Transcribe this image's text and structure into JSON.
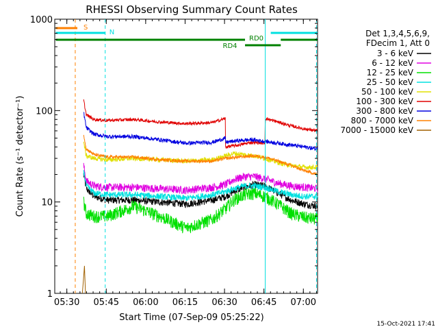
{
  "chart_data": {
    "type": "line",
    "title": "RHESSI Observing Summary Count Rates",
    "xlabel": "Start Time (07-Sep-09 05:25:22)",
    "ylabel": "Count Rate (s⁻¹ detector⁻¹)",
    "y_scale": "log",
    "ylim": [
      1,
      1000
    ],
    "xlim_minutes": [
      0,
      100
    ],
    "x_ticks": [
      {
        "label": "05:30",
        "minute": 4.6
      },
      {
        "label": "05:45",
        "minute": 19.6
      },
      {
        "label": "06:00",
        "minute": 34.6
      },
      {
        "label": "06:15",
        "minute": 49.6
      },
      {
        "label": "06:30",
        "minute": 64.6
      },
      {
        "label": "06:45",
        "minute": 79.6
      },
      {
        "label": "07:00",
        "minute": 94.6
      }
    ],
    "y_ticks": [
      {
        "label": "1",
        "value": 1
      },
      {
        "label": "10",
        "value": 10
      },
      {
        "label": "100",
        "value": 100
      },
      {
        "label": "1000",
        "value": 1000
      }
    ],
    "legend": {
      "placement": "right",
      "header": [
        "Det 1,3,4,5,6,9,",
        "FDecim 1, Att 0"
      ]
    },
    "series": [
      {
        "name": "3 - 6 keV",
        "color": "#000000",
        "x": [
          11,
          12,
          15,
          20,
          30,
          40,
          50,
          60,
          65,
          68,
          72,
          76,
          80,
          85,
          90,
          95,
          100
        ],
        "y": [
          20,
          14,
          11.5,
          10.5,
          10.5,
          10,
          9.5,
          10.5,
          11.5,
          13,
          14.5,
          15.5,
          15,
          12.5,
          10.5,
          9.5,
          9
        ]
      },
      {
        "name": "6 - 12 keV",
        "color": "#e000e0",
        "x": [
          11,
          12,
          15,
          20,
          30,
          40,
          50,
          60,
          65,
          68,
          72,
          76,
          80,
          85,
          90,
          95,
          100
        ],
        "y": [
          25,
          17,
          15,
          14.5,
          14.5,
          14,
          13.5,
          14.5,
          15.5,
          17.5,
          19,
          19,
          18,
          16,
          15,
          14.5,
          14
        ]
      },
      {
        "name": "12 - 25 keV",
        "color": "#00e000",
        "x": [
          11,
          12,
          15,
          20,
          30,
          40,
          50,
          60,
          65,
          68,
          72,
          76,
          80,
          85,
          90,
          95,
          100
        ],
        "y": [
          10,
          7.5,
          7,
          7,
          9,
          7,
          5.2,
          6.5,
          8.5,
          10.5,
          12,
          12.5,
          11.5,
          9.5,
          7.5,
          6.8,
          6.5
        ]
      },
      {
        "name": "25 - 50 keV",
        "color": "#00e0e0",
        "x": [
          11,
          12,
          15,
          20,
          30,
          40,
          50,
          60,
          65,
          68,
          72,
          76,
          80,
          85,
          90,
          95,
          100
        ],
        "y": [
          22,
          15,
          12.5,
          12,
          12,
          11.5,
          11,
          12,
          13,
          14,
          15,
          15,
          14.5,
          13,
          12,
          11.5,
          11.5
        ]
      },
      {
        "name": "50 - 100 keV",
        "color": "#e0e000",
        "x": [
          11,
          12,
          15,
          20,
          30,
          40,
          50,
          60,
          65,
          68,
          72,
          76,
          80,
          85,
          90,
          95,
          100
        ],
        "y": [
          45,
          32,
          30,
          29,
          30,
          29,
          28,
          29,
          32,
          34,
          33,
          32,
          30,
          27,
          25,
          24,
          24
        ]
      },
      {
        "name": "100 - 300 keV",
        "color": "#e00000",
        "x": [
          11,
          12,
          15,
          20,
          30,
          40,
          50,
          60,
          64.9,
          65,
          70,
          75,
          80,
          80.1,
          85,
          90,
          95,
          100
        ],
        "y": [
          130,
          90,
          80,
          78,
          80,
          75,
          72,
          74,
          82,
          40,
          42,
          45,
          44,
          82,
          75,
          68,
          63,
          60
        ]
      },
      {
        "name": "300 - 800 keV",
        "color": "#0000e0",
        "x": [
          11,
          12,
          15,
          20,
          30,
          40,
          50,
          60,
          64.9,
          65,
          70,
          75,
          80,
          85,
          90,
          95,
          100
        ],
        "y": [
          95,
          65,
          55,
          52,
          52,
          48,
          44,
          45,
          50,
          45,
          47,
          48,
          46,
          44,
          42,
          40,
          38
        ]
      },
      {
        "name": "800 - 7000 keV",
        "color": "#ff8000",
        "x": [
          11,
          12,
          15,
          20,
          30,
          40,
          50,
          60,
          65,
          70,
          75,
          80,
          85,
          90,
          95,
          100
        ],
        "y": [
          55,
          38,
          33,
          31,
          31,
          29,
          28,
          28,
          30,
          31,
          32,
          31,
          28,
          25,
          22,
          20
        ]
      },
      {
        "name": "7000 - 15000 keV",
        "color": "#a06000",
        "x": [
          10.5,
          10.9,
          11.3,
          11.7
        ],
        "y": [
          1.0,
          1.4,
          2.0,
          1.0
        ]
      }
    ],
    "annotations": [
      {
        "label": "S",
        "color": "#ff8000",
        "x_start": 0.4,
        "x_end": 8.6,
        "level": "top"
      },
      {
        "label": "N",
        "color": "#00e0e0",
        "segments": [
          [
            0.4,
            19.2
          ],
          [
            82.2,
            100
          ]
        ],
        "level": "upper"
      },
      {
        "label": "RD0",
        "color": "#008000",
        "segments": [
          [
            0.4,
            72.4
          ],
          [
            86.0,
            100
          ]
        ],
        "level": "middle"
      },
      {
        "label": "RD4",
        "color": "#008000",
        "segments": [
          [
            72.4,
            86.0
          ]
        ],
        "level": "lower"
      }
    ],
    "vertical_markers": [
      {
        "x": 7.8,
        "color": "#ff8000",
        "style": "dashed"
      },
      {
        "x": 19.2,
        "color": "#00e0e0",
        "style": "dashed"
      },
      {
        "x": 80.1,
        "color": "#00e0e0",
        "style": "solid"
      },
      {
        "x": 99.6,
        "color": "#00e0e0",
        "style": "dashed"
      }
    ],
    "grid": false
  },
  "footer": {
    "timestamp": "15-Oct-2021 17:41"
  }
}
